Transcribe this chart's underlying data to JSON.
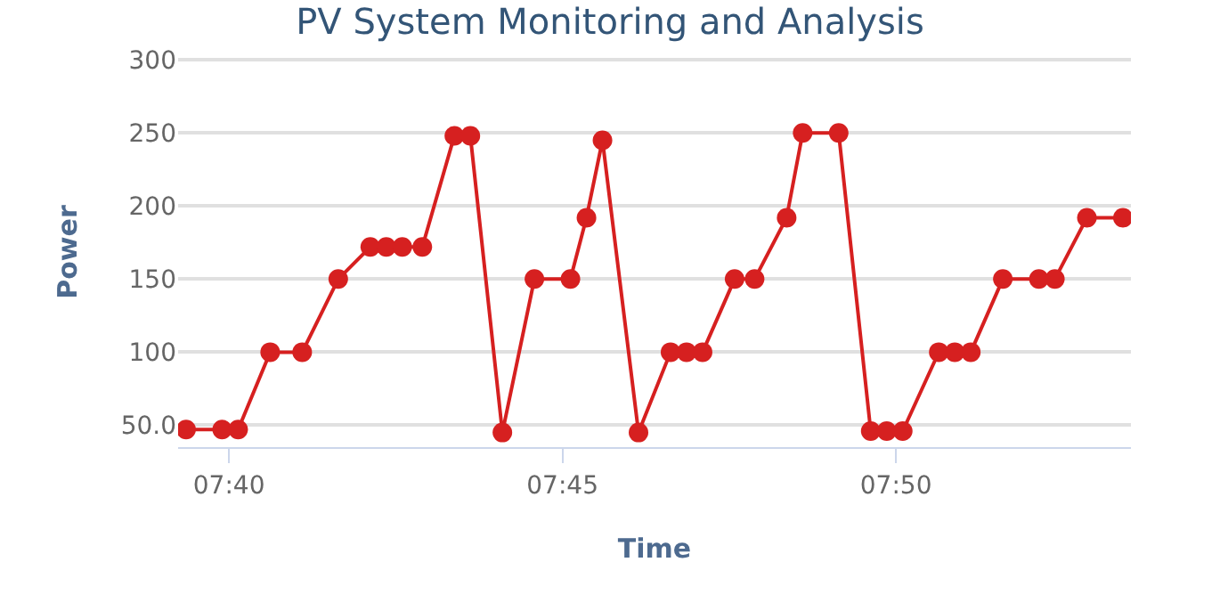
{
  "chart_data": {
    "type": "line",
    "title": "PV System Monitoring and Analysis",
    "xlabel": "Time",
    "ylabel": "Power",
    "x": [
      7.656,
      7.665,
      7.669,
      7.677,
      7.685,
      7.694,
      7.702,
      7.706,
      7.71,
      7.715,
      7.723,
      7.727,
      7.735,
      7.743,
      7.752,
      7.756,
      7.76,
      7.769,
      7.777,
      7.781,
      7.785,
      7.793,
      7.798,
      7.806,
      7.81,
      7.819,
      7.827,
      7.831,
      7.835,
      7.844,
      7.848,
      7.852,
      7.86,
      7.869,
      7.873,
      7.881,
      7.89
    ],
    "series": [
      {
        "color": "#d62020",
        "values": [
          47,
          47,
          47,
          100,
          100,
          150,
          172,
          172,
          172,
          172,
          248,
          248,
          45,
          150,
          150,
          192,
          245,
          45,
          100,
          100,
          100,
          150,
          150,
          192,
          250,
          250,
          46,
          46,
          46,
          100,
          100,
          100,
          150,
          150,
          150,
          192,
          192
        ]
      }
    ],
    "xlim": [
      7.654,
      7.892
    ],
    "xticks": [
      {
        "value": 7.6667,
        "label": "07:40"
      },
      {
        "value": 7.75,
        "label": "07:45"
      },
      {
        "value": 7.8333,
        "label": "07:50"
      }
    ],
    "ylim": [
      35,
      302
    ],
    "yticks": [
      {
        "value": 50,
        "label": "50.0"
      },
      100,
      150,
      200,
      250,
      300
    ],
    "grid": "y",
    "marker": "circle",
    "line_style": "solid"
  }
}
